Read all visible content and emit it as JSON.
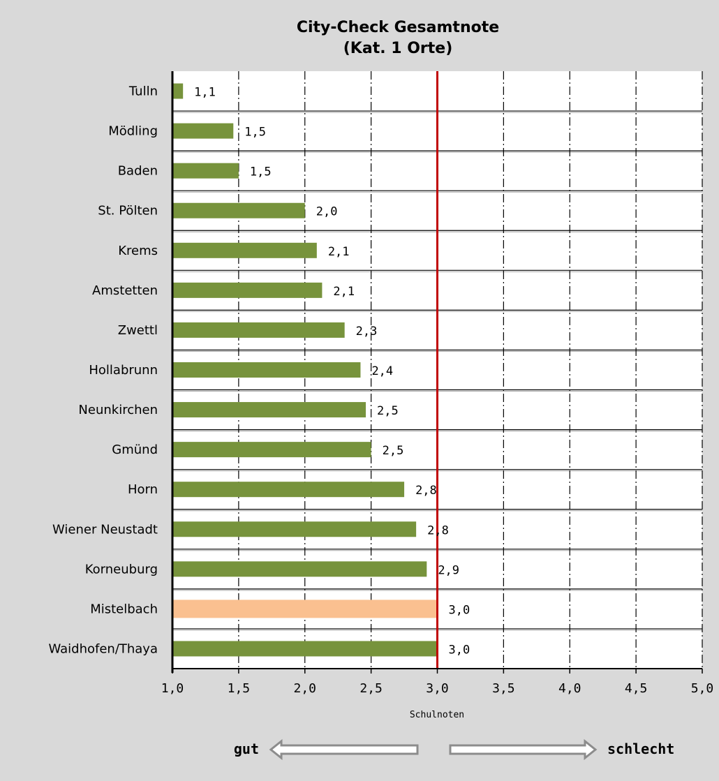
{
  "chart_data": {
    "type": "bar",
    "orientation": "horizontal",
    "title": "City-Check Gesamtnote",
    "subtitle": "(Kat. 1 Orte)",
    "xlabel": "Schulnoten",
    "xlim": [
      1.0,
      5.0
    ],
    "x_ticks": [
      "1,0",
      "1,5",
      "2,0",
      "2,5",
      "3,0",
      "3,5",
      "4,0",
      "4,5",
      "5,0"
    ],
    "categories": [
      "Tulln",
      "Mödling",
      "Baden",
      "St. Pölten",
      "Krems",
      "Amstetten",
      "Zwettl",
      "Hollabrunn",
      "Neunkirchen",
      "Gmünd",
      "Horn",
      "Wiener Neustadt",
      "Korneuburg",
      "Mistelbach",
      "Waidhofen/Thaya"
    ],
    "values": [
      1.08,
      1.46,
      1.5,
      2.0,
      2.09,
      2.13,
      2.3,
      2.42,
      2.46,
      2.5,
      2.75,
      2.84,
      2.92,
      3.0,
      3.0
    ],
    "value_labels": [
      "1,1",
      "1,5",
      "1,5",
      "2,0",
      "2,1",
      "2,1",
      "2,3",
      "2,4",
      "2,5",
      "2,5",
      "2,8",
      "2,8",
      "2,9",
      "3,0",
      "3,0"
    ],
    "highlight_category": "Mistelbach",
    "bar_color": "#77933c",
    "highlight_color": "#fac090",
    "reference_line": {
      "x": 3.0,
      "color": "#c00000"
    },
    "grid": true,
    "legend": "none"
  },
  "scale_hint": {
    "good_label": "gut",
    "bad_label": "schlecht",
    "arrow_color": "#8c8c8c"
  }
}
